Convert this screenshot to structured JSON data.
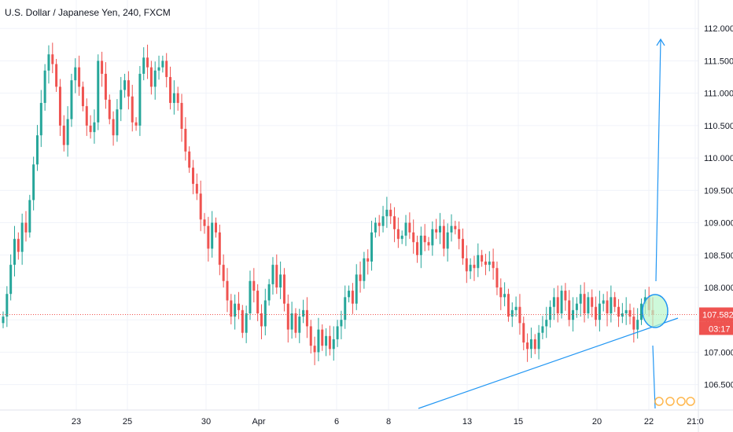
{
  "header": {
    "title": "U.S. Dollar / Japanese Yen, 240, FXCM"
  },
  "price_axis": {
    "ticks": [
      "112.000",
      "111.500",
      "111.000",
      "110.500",
      "110.000",
      "109.500",
      "109.000",
      "108.500",
      "108.000",
      "107.500",
      "107.000",
      "106.500"
    ],
    "last_price_label": "107.582",
    "countdown_label": "03:17"
  },
  "time_axis": {
    "ticks": [
      "23",
      "25",
      "30",
      "Apr",
      "6",
      "8",
      "13",
      "15",
      "20",
      "22",
      "21:0"
    ]
  },
  "colors": {
    "up": "#26a69a",
    "down": "#ef5350",
    "grid": "#f0f3fa",
    "axis_text": "#131722",
    "drawing": "#2196f3",
    "price_line": "#ef5350",
    "highlight_fill": "#b9f6ca"
  },
  "chart_data": {
    "type": "candlestick",
    "symbol": "U.S. Dollar / Japanese Yen",
    "interval": "240",
    "source": "FXCM",
    "ylim": [
      106.3,
      112.35
    ],
    "last_price": 107.582,
    "series_close": [
      107.55,
      107.9,
      108.35,
      108.75,
      108.55,
      109.0,
      108.85,
      109.35,
      109.9,
      110.35,
      110.85,
      111.35,
      111.6,
      111.45,
      111.1,
      110.5,
      110.2,
      110.6,
      111.2,
      111.4,
      111.1,
      110.8,
      110.5,
      110.4,
      110.55,
      111.5,
      111.3,
      110.9,
      110.6,
      110.35,
      110.75,
      111.05,
      111.2,
      110.95,
      110.55,
      110.5,
      111.3,
      111.55,
      111.4,
      111.1,
      111.35,
      111.4,
      111.5,
      111.25,
      110.85,
      111.0,
      110.85,
      110.45,
      110.1,
      109.85,
      109.6,
      109.45,
      109.05,
      108.95,
      108.6,
      109.0,
      108.85,
      108.35,
      108.1,
      107.8,
      107.55,
      107.75,
      107.65,
      107.3,
      107.6,
      108.1,
      107.95,
      107.6,
      107.4,
      107.8,
      108.05,
      108.35,
      108.0,
      108.2,
      107.75,
      107.35,
      107.6,
      107.3,
      107.55,
      107.65,
      107.4,
      107.1,
      107.0,
      107.35,
      107.1,
      107.25,
      107.05,
      107.2,
      107.4,
      107.5,
      107.85,
      107.95,
      107.75,
      108.2,
      108.1,
      108.45,
      108.4,
      108.85,
      109.0,
      108.95,
      109.1,
      109.2,
      109.1,
      108.9,
      108.75,
      108.8,
      109.0,
      108.85,
      108.7,
      108.5,
      108.8,
      108.7,
      108.65,
      108.9,
      108.85,
      108.95,
      108.6,
      108.85,
      108.95,
      108.9,
      108.75,
      108.45,
      108.25,
      108.35,
      108.3,
      108.5,
      108.4,
      108.35,
      108.4,
      108.3,
      108.0,
      107.85,
      107.9,
      107.55,
      107.65,
      107.7,
      107.45,
      107.15,
      107.05,
      107.2,
      107.05,
      107.3,
      107.4,
      107.5,
      107.7,
      107.85,
      107.6,
      107.95,
      107.8,
      107.5,
      107.65,
      107.75,
      107.9,
      107.6,
      107.85,
      107.7,
      107.5,
      107.75,
      107.8,
      107.6,
      107.85,
      107.7,
      107.55,
      107.6,
      107.65,
      107.55,
      107.35,
      107.5,
      107.75,
      107.85,
      107.65,
      107.58
    ]
  }
}
